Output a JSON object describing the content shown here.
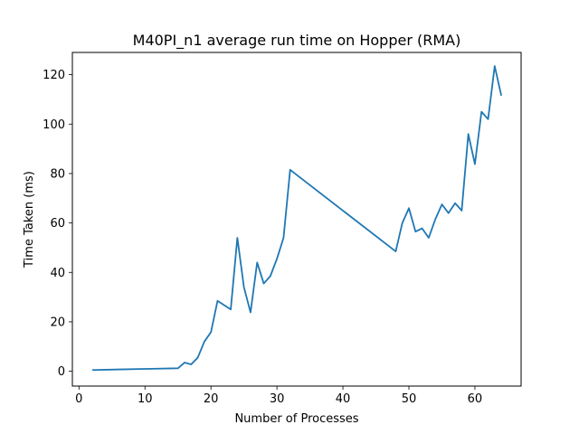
{
  "chart_data": {
    "type": "line",
    "title": "M40PI_n1 average run time on Hopper (RMA)",
    "xlabel": "Number of Processes",
    "ylabel": "Time Taken (ms)",
    "xlim": [
      -1,
      67
    ],
    "ylim": [
      -6,
      129
    ],
    "xticks": [
      0,
      10,
      20,
      30,
      40,
      50,
      60
    ],
    "yticks": [
      0,
      20,
      40,
      60,
      80,
      100,
      120
    ],
    "grid": false,
    "colors": {
      "line": "#1f77b4",
      "axes": "#000000",
      "background": "#ffffff"
    },
    "series": [
      {
        "x": [
          2,
          11,
          15,
          16,
          17,
          18,
          19,
          20,
          21,
          23,
          24,
          25,
          26,
          27,
          28,
          29,
          30,
          31,
          32,
          48,
          49,
          50,
          51,
          52,
          53,
          54,
          55,
          56,
          57,
          58,
          59,
          60,
          61,
          62,
          63,
          64
        ],
        "y": [
          0.5,
          1.0,
          1.2,
          3.5,
          2.8,
          5.5,
          12.0,
          15.8,
          28.5,
          25.0,
          54.0,
          34.0,
          23.8,
          44.0,
          35.5,
          38.5,
          45.5,
          54.0,
          81.5,
          48.5,
          60.0,
          66.0,
          56.5,
          57.8,
          54.0,
          61.5,
          67.5,
          64.0,
          68.0,
          65.0,
          96.0,
          83.8,
          105.0,
          102.0,
          123.5,
          111.5
        ]
      }
    ]
  }
}
